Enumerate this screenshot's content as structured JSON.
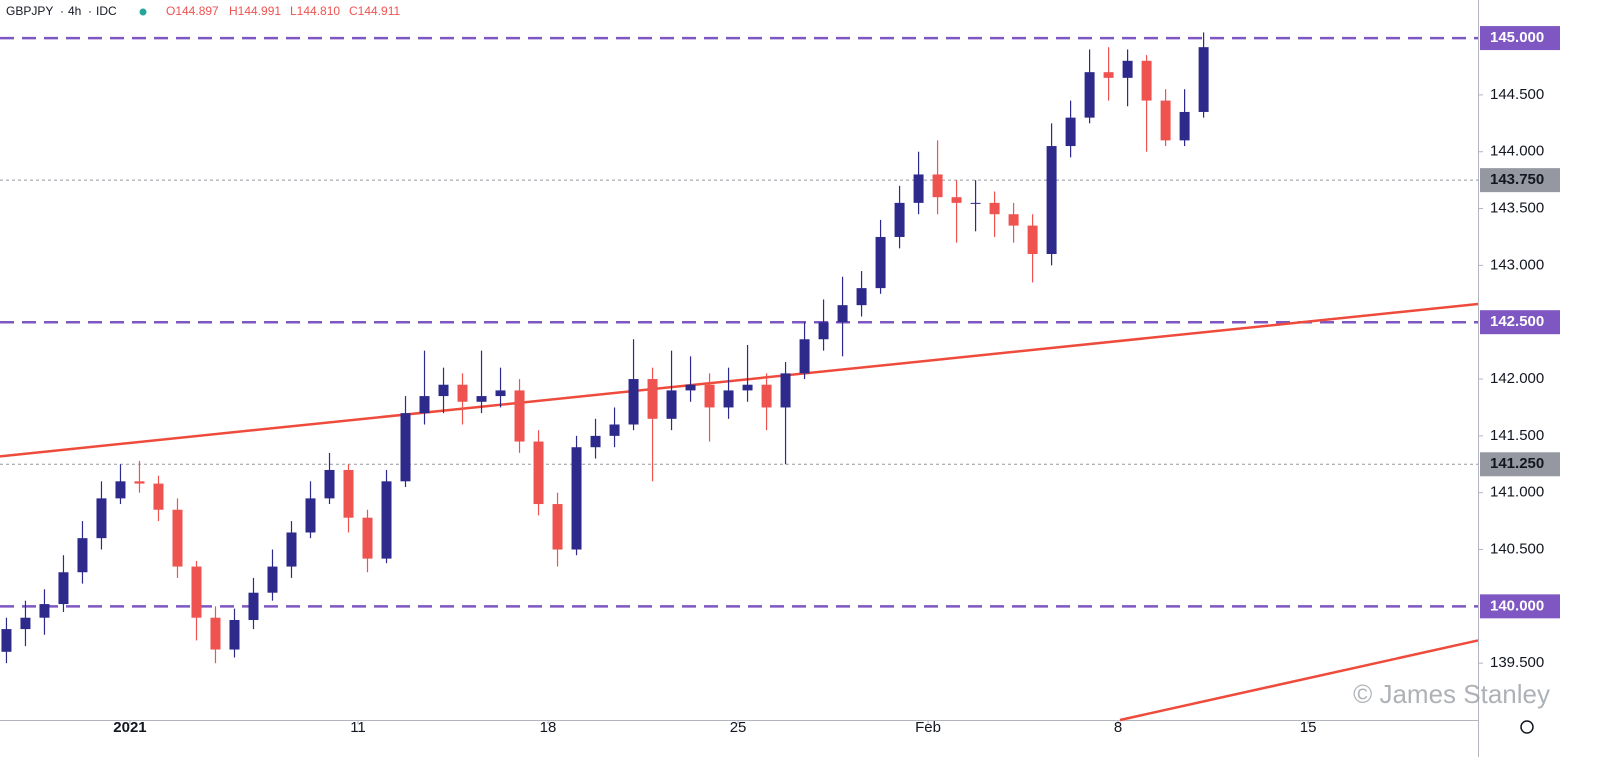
{
  "chart_data": {
    "type": "candlestick",
    "symbol": "GBPJPY",
    "interval": "4h",
    "source": "IDC",
    "legend_values": [
      "O144.897",
      "H144.991",
      "L144.810",
      "C144.911"
    ],
    "watermark": "© James Stanley",
    "up_color": "#2e2a8c",
    "down_color": "#ef5350",
    "xlim": [
      -3.42,
      35.47
    ],
    "ylim": [
      139.0,
      145.335
    ],
    "xticks": [
      {
        "value": 0,
        "label": "2021"
      },
      {
        "value": 6,
        "label": "11"
      },
      {
        "value": 11,
        "label": "18"
      },
      {
        "value": 16,
        "label": "25"
      },
      {
        "value": 21,
        "label": "Feb"
      },
      {
        "value": 26,
        "label": "8"
      },
      {
        "value": 31,
        "label": "15"
      }
    ],
    "yticks": [
      {
        "value": 139.5,
        "label": "139.500"
      },
      {
        "value": 140.5,
        "label": "140.500"
      },
      {
        "value": 141,
        "label": "141.000"
      },
      {
        "value": 141.5,
        "label": "141.500"
      },
      {
        "value": 142,
        "label": "142.000"
      },
      {
        "value": 143,
        "label": "143.000"
      },
      {
        "value": 143.5,
        "label": "143.500"
      },
      {
        "value": 144,
        "label": "144.000"
      },
      {
        "value": 144.5,
        "label": "144.500"
      }
    ],
    "levels": [
      {
        "value": 145,
        "label": "145.000",
        "style": "dashed",
        "color": "#7e57c2"
      },
      {
        "value": 143.75,
        "label": "143.750",
        "style": "dotted",
        "color": "#9598a1"
      },
      {
        "value": 142.5,
        "label": "142.500",
        "style": "dashed",
        "color": "#7e57c2"
      },
      {
        "value": 141.25,
        "label": "141.250",
        "style": "dotted",
        "color": "#9598a1"
      },
      {
        "value": 140,
        "label": "140.000",
        "style": "dashed",
        "color": "#7e57c2"
      }
    ],
    "trendlines": [
      {
        "x": [
          -3.42,
          35.47
        ],
        "y": [
          141.32,
          142.66
        ],
        "color": "#ef4b3c"
      },
      {
        "x": [
          26.05,
          35.47
        ],
        "y": [
          139.0,
          139.7
        ],
        "color": "#ef4b3c"
      }
    ],
    "x": [
      -3.25,
      -2.75,
      -2.25,
      -1.75,
      -1.25,
      -0.75,
      -0.25,
      0.25,
      0.75,
      1.25,
      1.75,
      2.25,
      2.75,
      3.25,
      3.75,
      4.25,
      4.75,
      5.25,
      5.75,
      6.25,
      6.75,
      7.25,
      7.75,
      8.25,
      8.75,
      9.25,
      9.75,
      10.25,
      10.75,
      11.25,
      11.75,
      12.25,
      12.75,
      13.25,
      13.75,
      14.25,
      14.75,
      15.25,
      15.75,
      16.25,
      16.75,
      17.25,
      17.75,
      18.25,
      18.75,
      19.25,
      19.75,
      20.25,
      20.75,
      21.25,
      21.75,
      22.25,
      22.75,
      23.25,
      23.75,
      24.25,
      24.75,
      25.25,
      25.75,
      26.25,
      26.75,
      27.25,
      27.75,
      28.25
    ],
    "open": [
      139.6,
      139.8,
      139.9,
      140.02,
      140.3,
      140.6,
      140.95,
      141.1,
      141.08,
      140.85,
      140.35,
      139.9,
      139.62,
      139.88,
      140.12,
      140.35,
      140.65,
      140.95,
      141.2,
      140.78,
      140.42,
      141.1,
      141.7,
      141.85,
      141.95,
      141.8,
      141.85,
      141.9,
      141.45,
      140.9,
      140.5,
      141.4,
      141.5,
      141.6,
      142.0,
      141.65,
      141.9,
      141.95,
      141.75,
      141.9,
      141.95,
      141.75,
      142.05,
      142.35,
      142.5,
      142.65,
      142.8,
      143.25,
      143.55,
      143.8,
      143.6,
      143.55,
      143.55,
      143.45,
      143.35,
      143.1,
      144.05,
      144.3,
      144.7,
      144.65,
      144.8,
      144.45,
      144.1,
      144.35
    ],
    "high": [
      139.9,
      140.05,
      140.15,
      140.45,
      140.75,
      141.1,
      141.25,
      141.28,
      141.15,
      140.95,
      140.4,
      140.0,
      139.98,
      140.25,
      140.5,
      140.75,
      141.1,
      141.35,
      141.25,
      140.85,
      141.2,
      141.85,
      142.25,
      142.1,
      142.05,
      142.25,
      142.1,
      142.0,
      141.55,
      141.0,
      141.5,
      141.65,
      141.75,
      142.35,
      142.1,
      142.25,
      142.2,
      142.05,
      142.1,
      142.3,
      142.05,
      142.15,
      142.5,
      142.7,
      142.9,
      142.95,
      143.4,
      143.7,
      144.0,
      144.1,
      143.75,
      143.75,
      143.65,
      143.55,
      143.45,
      144.25,
      144.45,
      144.9,
      144.92,
      144.9,
      144.85,
      144.55,
      144.55,
      145.05
    ],
    "low": [
      139.5,
      139.65,
      139.75,
      139.95,
      140.2,
      140.5,
      140.9,
      141.0,
      140.75,
      140.25,
      139.7,
      139.5,
      139.55,
      139.8,
      140.05,
      140.25,
      140.6,
      140.9,
      140.65,
      140.3,
      140.38,
      141.05,
      141.6,
      141.7,
      141.6,
      141.7,
      141.75,
      141.35,
      140.8,
      140.35,
      140.45,
      141.3,
      141.4,
      141.55,
      141.1,
      141.55,
      141.8,
      141.45,
      141.65,
      141.8,
      141.55,
      141.25,
      142.0,
      142.25,
      142.2,
      142.55,
      142.75,
      143.15,
      143.45,
      143.45,
      143.2,
      143.3,
      143.25,
      143.2,
      142.85,
      143.0,
      143.95,
      144.25,
      144.45,
      144.4,
      144.0,
      144.05,
      144.05,
      144.3
    ],
    "close": [
      139.8,
      139.9,
      140.02,
      140.3,
      140.6,
      140.95,
      141.1,
      141.08,
      140.85,
      140.35,
      139.9,
      139.62,
      139.88,
      140.12,
      140.35,
      140.65,
      140.95,
      141.2,
      140.78,
      140.42,
      141.1,
      141.7,
      141.85,
      141.95,
      141.8,
      141.85,
      141.9,
      141.45,
      140.9,
      140.5,
      141.4,
      141.5,
      141.6,
      142.0,
      141.65,
      141.9,
      141.95,
      141.75,
      141.9,
      141.95,
      141.75,
      142.05,
      142.35,
      142.5,
      142.65,
      142.8,
      143.25,
      143.55,
      143.8,
      143.6,
      143.55,
      143.55,
      143.45,
      143.35,
      143.1,
      144.05,
      144.3,
      144.7,
      144.65,
      144.8,
      144.45,
      144.1,
      144.35,
      144.92
    ]
  }
}
